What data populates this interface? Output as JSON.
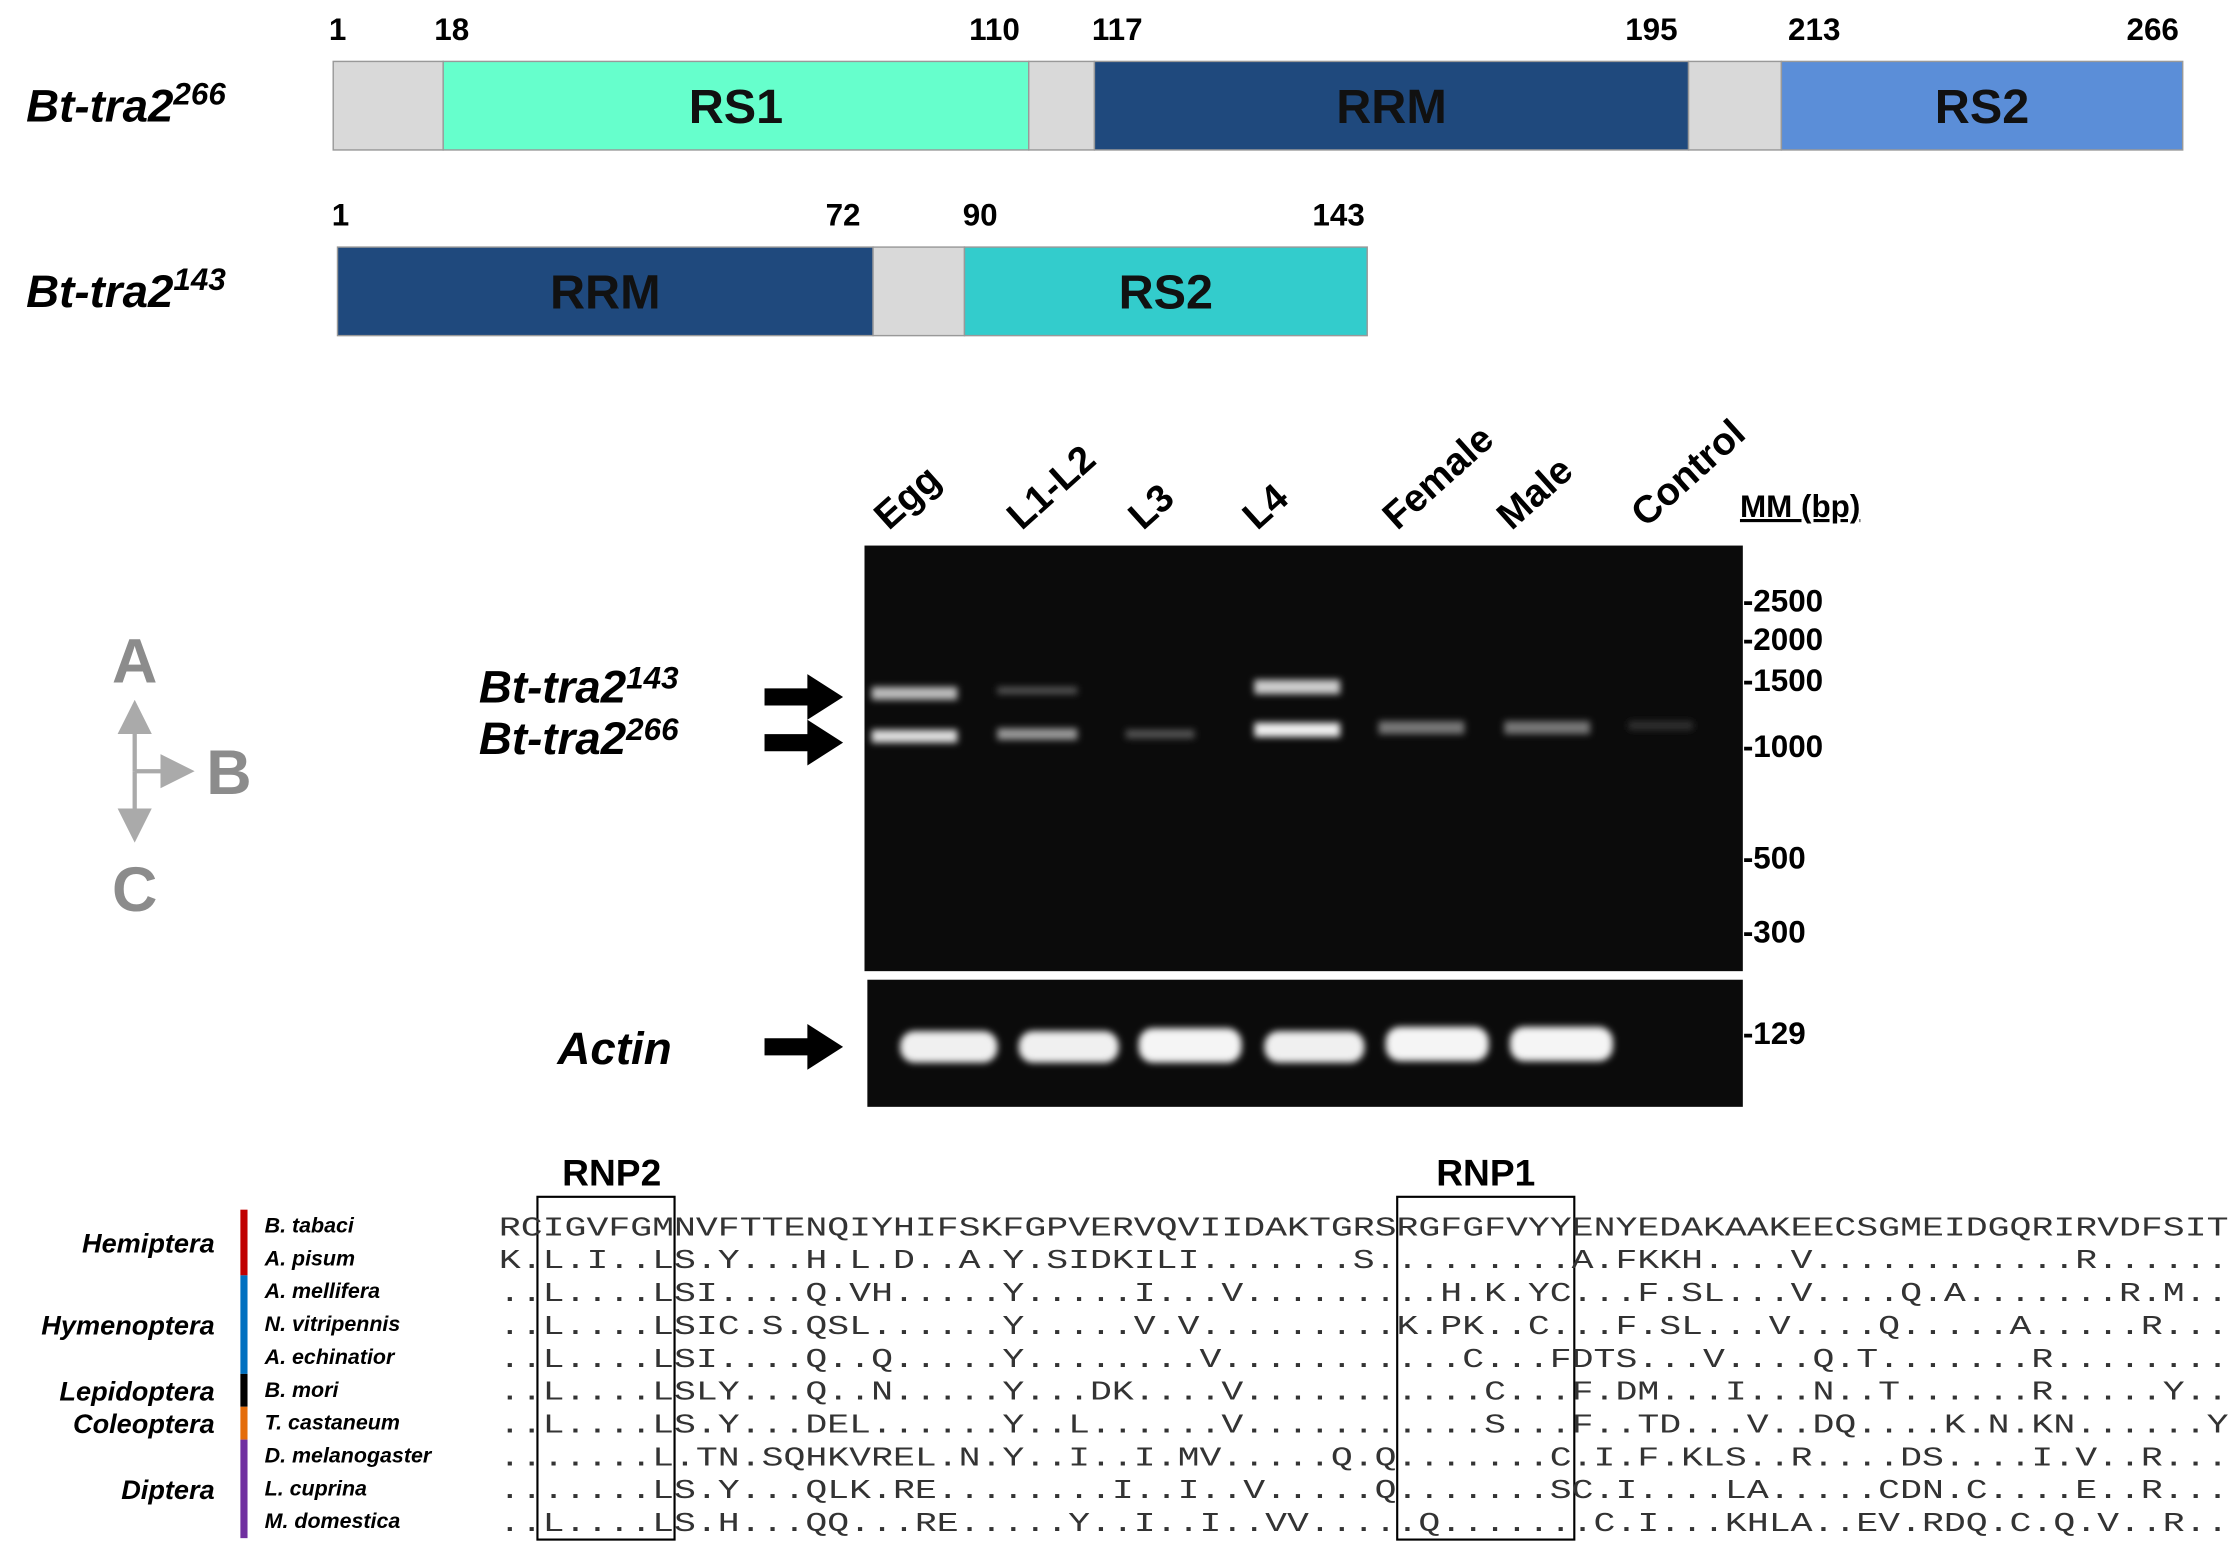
{
  "domains": [
    {
      "name": "Bt-tra2",
      "superscript": "266",
      "positions": [
        "1",
        "18",
        "110",
        "117",
        "195",
        "213",
        "266"
      ],
      "blocks": [
        "RS1",
        "RRM",
        "RS2"
      ]
    },
    {
      "name": "Bt-tra2",
      "superscript": "143",
      "positions": [
        "1",
        "72",
        "90",
        "143"
      ],
      "blocks": [
        "RRM",
        "RS2"
      ]
    }
  ],
  "gel": {
    "lanes": [
      "Egg",
      "L1-L2",
      "L3",
      "L4",
      "Female",
      "Male",
      "Control"
    ],
    "marker_title": "MM (bp)",
    "markers": [
      "-2500",
      "-2000",
      "-1500",
      "-1000",
      "-500",
      "-300",
      "-129"
    ],
    "band_labels": [
      {
        "name": "Bt-tra2",
        "superscript": "143"
      },
      {
        "name": "Bt-tra2",
        "superscript": "266"
      },
      {
        "name": "Actin"
      }
    ]
  },
  "orientation": [
    "A",
    "B",
    "C"
  ],
  "alignment": {
    "motifs": [
      "RNP2",
      "RNP1"
    ],
    "orders": [
      {
        "name": "Hemiptera",
        "color": "#c00000"
      },
      {
        "name": "Hymenoptera",
        "color": "#0070c0"
      },
      {
        "name": "Lepidoptera",
        "color": "#000000"
      },
      {
        "name": "Coleoptera",
        "color": "#e46c0a"
      },
      {
        "name": "Diptera",
        "color": "#7030a0"
      }
    ],
    "rows": [
      {
        "species": "B. tabaci",
        "sequence": "RCIGVFGMNVFTTENQIYHIFSKFGPVERVQVIIDAKTGRSRGFGFVYYENYEDAKAAKEECSGMEIDGQRIRVDFSIT"
      },
      {
        "species": "A. pisum",
        "sequence": "K.L.I..LS.Y...H.L.D..A.Y.SIDKILI.......S.........A.FKKH....V............R......."
      },
      {
        "species": "A. mellifera",
        "sequence": "..L....LSI....Q.VH.....Y.....I...V.........H.K.YC...F.SL...V....Q.A.......R.M...Y.."
      },
      {
        "species": "N. vitripennis",
        "sequence": "..L....LSIC.S.QSL......Y.....V.V.........K.PK..C...F.SL...V....Q.....A.....R.....Y."
      },
      {
        "species": "A. echinatior",
        "sequence": "..L....LSI....Q..Q.....Y........V...........C...FDTS...V....Q.T.......R.........."
      },
      {
        "species": "B. mori",
        "sequence": "..L....LSLY...Q..N.....Y...DK....V...........C...F.DM...I...N..T......R.....Y...."
      },
      {
        "species": "T. castaneum",
        "sequence": "..L....LS.Y...DEL......Y..L......V...........S...F..TD...V..DQ....K.N.KN......Y..."
      },
      {
        "species": "D. melanogaster",
        "sequence": ".......L.TN.SQHKVREL.N.Y..I..I.MV.....Q.Q.......C.I.F.KLS..R....DS....I.V..R......"
      },
      {
        "species": "L. cuprina",
        "sequence": ".......LS.Y...QLK.RE........I..I..V.....Q.......SC.I....LA.....CDN.C....E..R....AY."
      },
      {
        "species": "M. domestica",
        "sequence": "..L....LS.H...QQ...RE.....Y..I..I..VV.....Q.......C.I...KHLA..EV.RDQ.C.Q.V..R....AY."
      }
    ],
    "groups": [
      [
        0,
        1
      ],
      [
        2,
        3,
        4
      ],
      [
        5
      ],
      [
        6
      ],
      [
        7,
        8,
        9
      ]
    ]
  }
}
